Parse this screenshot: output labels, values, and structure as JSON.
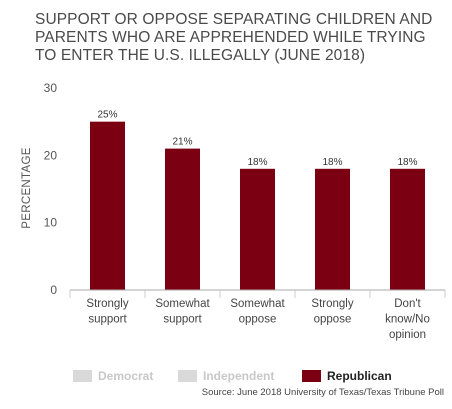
{
  "chart_data": {
    "type": "bar",
    "title": "SUPPORT OR OPPOSE SEPARATING CHILDREN AND PARENTS WHO ARE APPREHENDED WHILE TRYING TO ENTER THE U.S. ILLEGALLY (JUNE 2018)",
    "ylabel": "PERCENTAGE",
    "xlabel": "",
    "ylim": [
      0,
      30
    ],
    "yticks": [
      "0",
      "10",
      "20",
      "30"
    ],
    "grid": false,
    "legend_position": "bottom",
    "categories": [
      [
        "Strongly",
        "support"
      ],
      [
        "Somewhat",
        "support"
      ],
      [
        "Somewhat",
        "oppose"
      ],
      [
        "Strongly",
        "oppose"
      ],
      [
        "Don't",
        "know/No",
        "opinion"
      ]
    ],
    "series": [
      {
        "name": "Republican",
        "color": "#7b0012",
        "values": [
          25,
          21,
          18,
          18,
          18
        ],
        "labels": [
          "25%",
          "21%",
          "18%",
          "18%",
          "18%"
        ]
      }
    ],
    "legend": [
      {
        "name": "Democrat",
        "color": "#d9d9d9",
        "text_color": "#c8c8c8",
        "active": false
      },
      {
        "name": "Independent",
        "color": "#d9d9d9",
        "text_color": "#c8c8c8",
        "active": false
      },
      {
        "name": "Republican",
        "color": "#7b0012",
        "text_color": "#222222",
        "active": true
      }
    ]
  },
  "source": "Source: June 2018 University of Texas/Texas Tribune Poll"
}
